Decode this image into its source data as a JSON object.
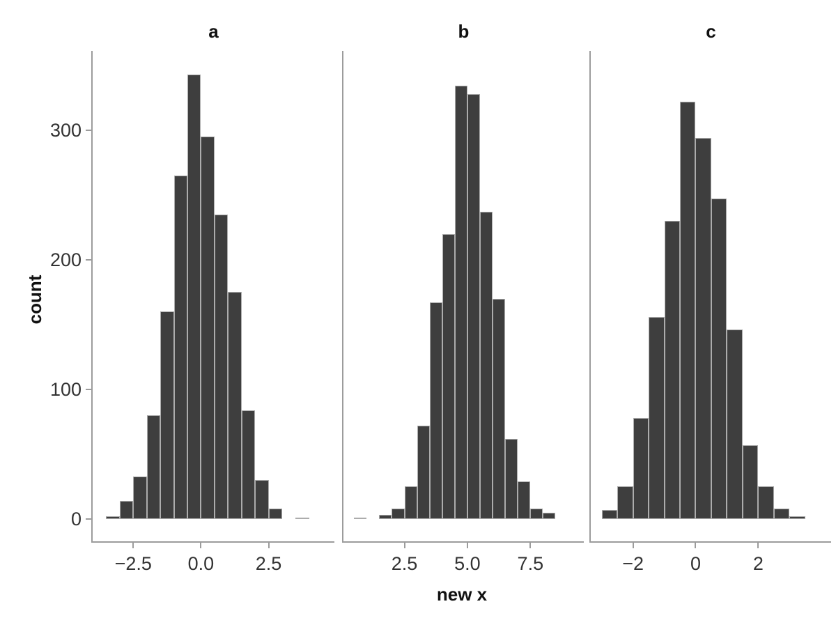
{
  "figure": {
    "background": "#ffffff",
    "bar_fill": "#3E3E3E",
    "bar_border": "#ACACAC",
    "axis_line_color": "#9C9C9C",
    "tick_label_color": "#333333",
    "title_color": "#111111"
  },
  "chart_data": {
    "type": "bar",
    "subtype": "faceted-histogram",
    "title": "",
    "ylabel": "count",
    "xlabel": "new x",
    "grid": "off",
    "legend": "none",
    "y_ticks": [
      {
        "value": 0,
        "label": "0"
      },
      {
        "value": 100,
        "label": "100"
      },
      {
        "value": 200,
        "label": "200"
      },
      {
        "value": 300,
        "label": "300"
      }
    ],
    "ylim": [
      0,
      360
    ],
    "binwidth": 0.5,
    "panels": [
      {
        "label": "a",
        "x_domain": [
          -4.0,
          4.93
        ],
        "bin_start": -3.5,
        "bins": [
          -3.5,
          -3.0,
          -2.5,
          -2.0,
          -1.5,
          -1.0,
          -0.5,
          0.0,
          0.5,
          1.0,
          1.5,
          2.0,
          2.5,
          3.0,
          3.5
        ],
        "counts": [
          2,
          14,
          33,
          80,
          160,
          265,
          343,
          295,
          235,
          175,
          84,
          30,
          8,
          0,
          1
        ],
        "x_ticks": [
          {
            "value": -2.5,
            "label": "−2.5"
          },
          {
            "value": 0.0,
            "label": "0.0"
          },
          {
            "value": 2.5,
            "label": "2.5"
          }
        ]
      },
      {
        "label": "b",
        "x_domain": [
          0.08,
          9.62
        ],
        "bin_start": 0.5,
        "bins": [
          0.5,
          1.0,
          1.5,
          2.0,
          2.5,
          3.0,
          3.5,
          4.0,
          4.5,
          5.0,
          5.5,
          6.0,
          6.5,
          7.0,
          7.5,
          8.0
        ],
        "counts": [
          1,
          0,
          3,
          8,
          25,
          72,
          167,
          220,
          334,
          328,
          237,
          170,
          62,
          29,
          8,
          5
        ],
        "x_ticks": [
          {
            "value": 2.5,
            "label": "2.5"
          },
          {
            "value": 5.0,
            "label": "5.0"
          },
          {
            "value": 7.5,
            "label": "7.5"
          }
        ]
      },
      {
        "label": "c",
        "x_domain": [
          -3.35,
          4.33
        ],
        "bin_start": -3.0,
        "bins": [
          -3.0,
          -2.5,
          -2.0,
          -1.5,
          -1.0,
          -0.5,
          0.0,
          0.5,
          1.0,
          1.5,
          2.0,
          2.5,
          3.0
        ],
        "counts": [
          7,
          25,
          78,
          156,
          230,
          322,
          294,
          247,
          146,
          57,
          25,
          8,
          2
        ],
        "x_ticks": [
          {
            "value": -2,
            "label": "−2"
          },
          {
            "value": 0,
            "label": "0"
          },
          {
            "value": 2,
            "label": "2"
          }
        ]
      }
    ]
  }
}
